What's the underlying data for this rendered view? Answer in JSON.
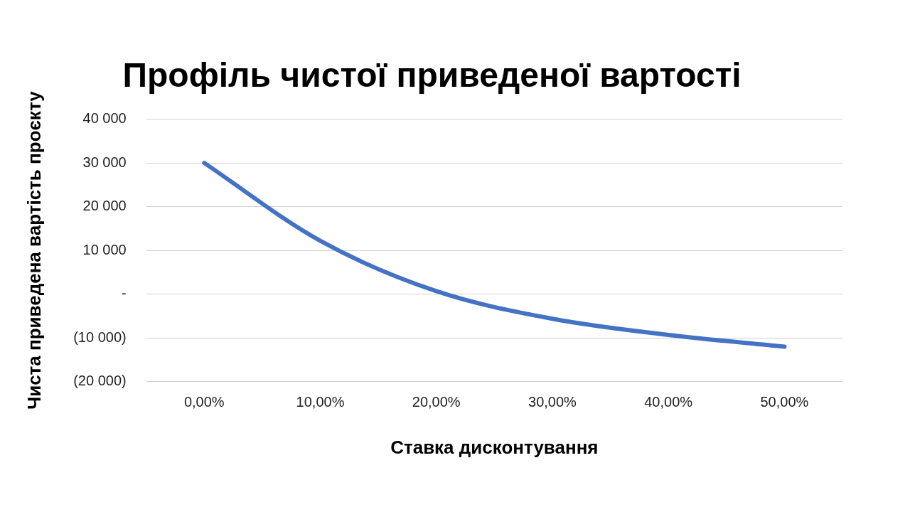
{
  "chart_data": {
    "type": "line",
    "title": "Профіль чистої приведеної вартості",
    "xlabel": "Ставка дисконтування",
    "ylabel": "Чиста приведена вартість проєкту",
    "categories": [
      "0,00%",
      "10,00%",
      "20,00%",
      "30,00%",
      "40,00%",
      "50,00%"
    ],
    "series": [
      {
        "color": "#4472c4",
        "values": [
          30000,
          12200,
          700,
          -5600,
          -9300,
          -12000
        ]
      }
    ],
    "ylim": [
      -20000,
      40000
    ],
    "yticks": [
      {
        "value": -20000,
        "label": "(20 000)"
      },
      {
        "value": -10000,
        "label": "(10 000)"
      },
      {
        "value": 0,
        "label": "-"
      },
      {
        "value": 10000,
        "label": "10 000"
      },
      {
        "value": 20000,
        "label": "20 000"
      },
      {
        "value": 30000,
        "label": "30 000"
      },
      {
        "value": 40000,
        "label": "40 000"
      }
    ],
    "grid": "y",
    "legend": false,
    "marker": "none",
    "line_style": "solid"
  }
}
